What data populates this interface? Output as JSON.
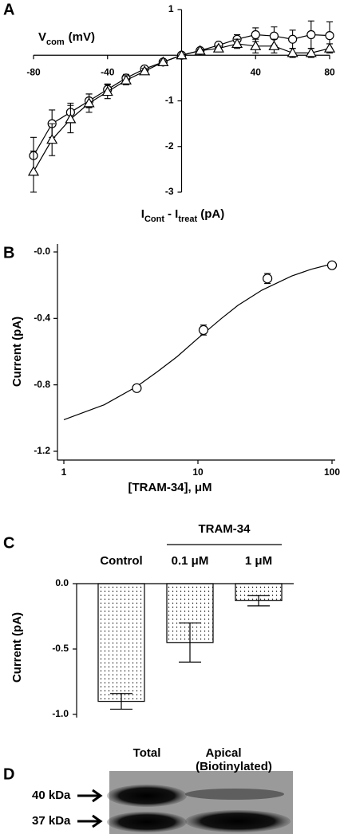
{
  "chart_data": [
    {
      "type": "line",
      "panel": "A",
      "ylabel": [
        "V",
        "com",
        "(mV)"
      ],
      "xlabel": [
        "I",
        "Cont",
        "- I",
        "treat",
        "(pA)"
      ],
      "x": [
        -80,
        -70,
        -60,
        -50,
        -40,
        -30,
        -20,
        -10,
        0,
        10,
        20,
        30,
        40,
        50,
        60,
        70,
        80
      ],
      "series": [
        {
          "marker": "circle",
          "color": "#000000",
          "values": [
            -2.2,
            -1.5,
            -1.25,
            -1.0,
            -0.75,
            -0.5,
            -0.3,
            -0.15,
            0,
            0.1,
            0.22,
            0.35,
            0.45,
            0.42,
            0.35,
            0.45,
            0.43
          ],
          "errors": [
            0.4,
            0.3,
            0.2,
            0.15,
            0.12,
            0.08,
            0.06,
            0.03,
            0,
            0.03,
            0.05,
            0.1,
            0.15,
            0.2,
            0.2,
            0.3,
            0.3
          ]
        },
        {
          "marker": "triangle",
          "color": "#000000",
          "values": [
            -2.55,
            -1.85,
            -1.4,
            -1.05,
            -0.8,
            -0.55,
            -0.35,
            -0.15,
            0,
            0.1,
            0.15,
            0.25,
            0.2,
            0.2,
            0.05,
            0.05,
            0.15
          ],
          "errors": [
            0.45,
            0.35,
            0.3,
            0.2,
            0.15,
            0.1,
            0.06,
            0.03,
            0,
            0.03,
            0.05,
            0.1,
            0.15,
            0.15,
            0.1,
            0.1,
            0.1
          ]
        }
      ],
      "xlim": [
        -80,
        80
      ],
      "xticks": [
        -80,
        -40,
        40,
        80
      ],
      "ylim": [
        -3,
        1
      ],
      "yticks": [
        1,
        -1,
        -2,
        -3
      ]
    },
    {
      "type": "scatter",
      "panel": "B",
      "ylabel": "Current (pA)",
      "xlabel": "[TRAM-34], μM",
      "xscale": "log",
      "x": [
        3.5,
        11,
        33,
        100
      ],
      "values": [
        -0.82,
        -0.47,
        -0.16,
        -0.08
      ],
      "errors": [
        null,
        0.03,
        0.03,
        null
      ],
      "fit": {
        "x": [
          1,
          2,
          3.5,
          5,
          7,
          10,
          15,
          20,
          30,
          50,
          70,
          100
        ],
        "y": [
          -1.01,
          -0.92,
          -0.81,
          -0.72,
          -0.63,
          -0.52,
          -0.4,
          -0.32,
          -0.23,
          -0.145,
          -0.104,
          -0.072
        ]
      },
      "xlim": [
        1,
        100
      ],
      "xticks": [
        1,
        10,
        100
      ],
      "ylim": [
        -1.2,
        0
      ],
      "yticks": [
        {
          "value": 0,
          "label": "-0.0"
        },
        -0.4,
        -0.8,
        -1.2
      ]
    },
    {
      "type": "bar",
      "panel": "C",
      "ylabel": "Current (pA)",
      "group_label": "TRAM-34",
      "categories": [
        "Control",
        "0.1 μM",
        "1 μM"
      ],
      "values": [
        -0.9,
        -0.45,
        -0.13
      ],
      "errors": [
        0.06,
        0.15,
        0.04
      ],
      "ylim": [
        -1,
        0
      ],
      "yticks": [
        {
          "value": 0,
          "label": "0.0"
        },
        -0.5,
        {
          "value": -1,
          "label": "-1.0"
        }
      ]
    }
  ],
  "blot": {
    "panel": "D",
    "lanes": [
      "Total",
      [
        "Apical",
        "(Biotinylated)"
      ]
    ],
    "markers": [
      "40 kDa",
      "37 kDa"
    ]
  }
}
